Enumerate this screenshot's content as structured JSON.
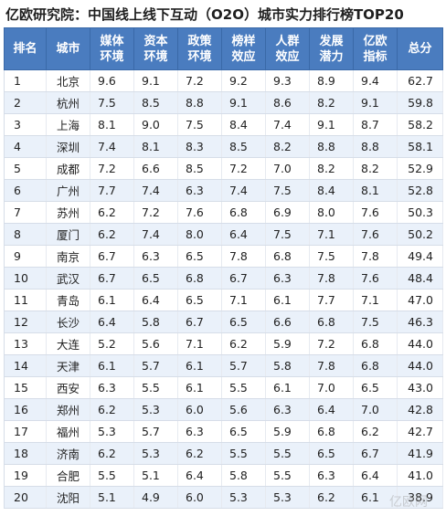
{
  "title": "亿欧研究院：中国线上线下互动（O2O）城市实力排行榜TOP20",
  "headers": [
    [
      "排名"
    ],
    [
      "城市"
    ],
    [
      "媒体",
      "环境"
    ],
    [
      "资本",
      "环境"
    ],
    [
      "政策",
      "环境"
    ],
    [
      "榜样",
      "效应"
    ],
    [
      "人群",
      "效应"
    ],
    [
      "发展",
      "潜力"
    ],
    [
      "亿欧",
      "指标"
    ],
    [
      "总分"
    ]
  ],
  "rows": [
    [
      "1",
      "北京",
      "9.6",
      "9.1",
      "7.2",
      "9.2",
      "9.3",
      "8.9",
      "9.4",
      "62.7"
    ],
    [
      "2",
      "杭州",
      "7.5",
      "8.5",
      "8.8",
      "9.1",
      "8.6",
      "8.2",
      "9.1",
      "59.8"
    ],
    [
      "3",
      "上海",
      "8.1",
      "9.0",
      "7.5",
      "8.4",
      "7.4",
      "9.1",
      "8.7",
      "58.2"
    ],
    [
      "4",
      "深圳",
      "7.4",
      "8.1",
      "8.3",
      "8.5",
      "8.2",
      "8.8",
      "8.8",
      "58.1"
    ],
    [
      "5",
      "成都",
      "7.2",
      "6.6",
      "8.5",
      "7.2",
      "7.0",
      "8.2",
      "8.2",
      "52.9"
    ],
    [
      "6",
      "广州",
      "7.7",
      "7.4",
      "6.3",
      "7.4",
      "7.5",
      "8.4",
      "8.1",
      "52.8"
    ],
    [
      "7",
      "苏州",
      "6.2",
      "7.2",
      "7.6",
      "6.8",
      "6.9",
      "8.0",
      "7.6",
      "50.3"
    ],
    [
      "8",
      "厦门",
      "6.2",
      "7.4",
      "8.0",
      "6.4",
      "7.5",
      "7.1",
      "7.6",
      "50.2"
    ],
    [
      "9",
      "南京",
      "6.7",
      "6.3",
      "6.5",
      "7.8",
      "6.8",
      "7.5",
      "7.8",
      "49.4"
    ],
    [
      "10",
      "武汉",
      "6.7",
      "6.5",
      "6.8",
      "6.7",
      "6.3",
      "7.8",
      "7.6",
      "48.4"
    ],
    [
      "11",
      "青岛",
      "6.1",
      "6.4",
      "6.5",
      "7.1",
      "6.1",
      "7.7",
      "7.1",
      "47.0"
    ],
    [
      "12",
      "长沙",
      "6.4",
      "5.8",
      "6.7",
      "6.5",
      "6.6",
      "6.8",
      "7.5",
      "46.3"
    ],
    [
      "13",
      "大连",
      "5.2",
      "5.6",
      "7.1",
      "6.2",
      "5.9",
      "7.2",
      "6.8",
      "44.0"
    ],
    [
      "14",
      "天津",
      "6.1",
      "5.7",
      "6.1",
      "5.7",
      "5.8",
      "7.8",
      "6.8",
      "44.0"
    ],
    [
      "15",
      "西安",
      "6.3",
      "5.5",
      "6.1",
      "5.5",
      "6.1",
      "7.0",
      "6.5",
      "43.0"
    ],
    [
      "16",
      "郑州",
      "6.2",
      "5.3",
      "6.0",
      "5.6",
      "6.3",
      "6.4",
      "7.0",
      "42.8"
    ],
    [
      "17",
      "福州",
      "5.3",
      "5.7",
      "6.3",
      "6.5",
      "5.9",
      "6.8",
      "6.2",
      "42.7"
    ],
    [
      "18",
      "济南",
      "6.2",
      "5.3",
      "6.2",
      "5.5",
      "5.5",
      "6.5",
      "6.7",
      "41.9"
    ],
    [
      "19",
      "合肥",
      "5.5",
      "5.1",
      "6.4",
      "5.8",
      "5.5",
      "6.3",
      "6.4",
      "41.0"
    ],
    [
      "20",
      "沈阳",
      "5.1",
      "4.9",
      "6.0",
      "5.3",
      "5.3",
      "6.2",
      "6.1",
      "38.9"
    ]
  ],
  "watermark": "亿欧网"
}
